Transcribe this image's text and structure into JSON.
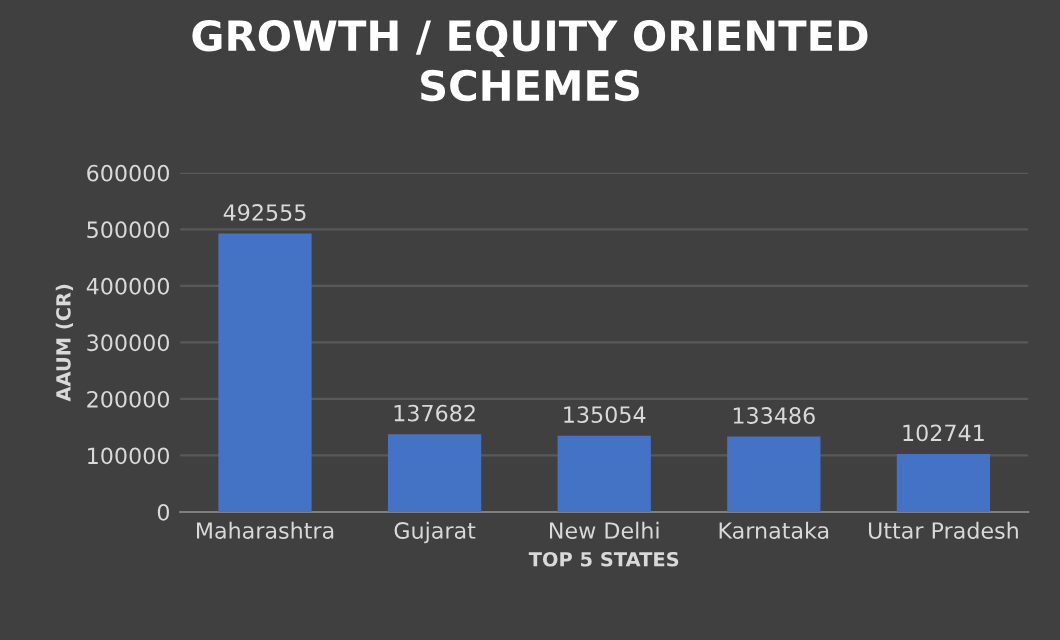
{
  "chart_data": {
    "type": "bar",
    "title": "GROWTH / EQUITY ORIENTED\nSCHEMES",
    "xlabel": "TOP 5 STATES",
    "ylabel": "AAUM (CR)",
    "categories": [
      "Maharashtra",
      "Gujarat",
      "New Delhi",
      "Karnataka",
      "Uttar Pradesh"
    ],
    "values": [
      492555,
      137682,
      135054,
      133486,
      102741
    ],
    "color": "#4472c4",
    "ylim": [
      0,
      600000
    ],
    "yticks": [
      0,
      100000,
      200000,
      300000,
      400000,
      500000,
      600000
    ],
    "grid": "y",
    "data_labels": true
  }
}
